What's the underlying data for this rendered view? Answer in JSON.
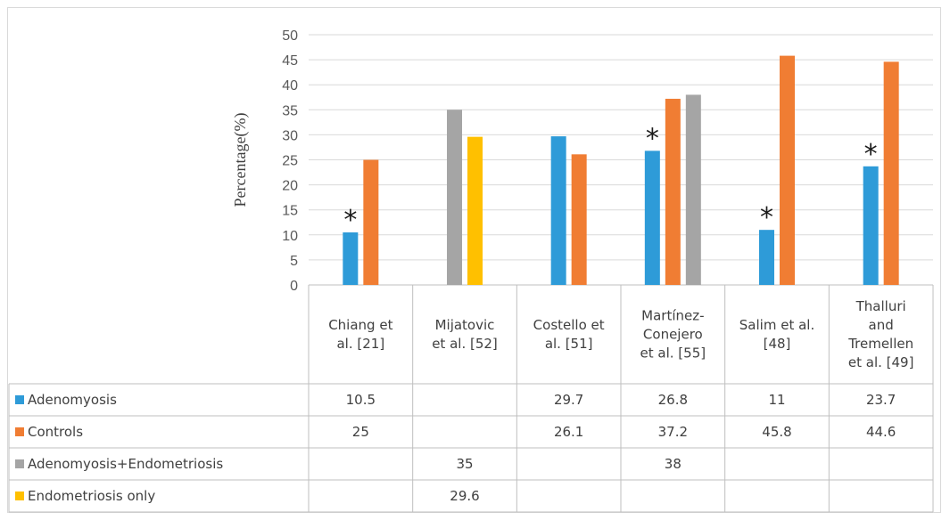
{
  "chart_data": {
    "type": "bar",
    "title": "",
    "xlabel": "",
    "ylabel": "Percentage(%)",
    "ylim": [
      0,
      50
    ],
    "ytick_step": 5,
    "grid": true,
    "legend_placement": "data-table-left",
    "categories": [
      [
        "Chiang et",
        "al. [21]"
      ],
      [
        "Mijatovic",
        "et al. [52]"
      ],
      [
        "Costello et",
        "al. [51]"
      ],
      [
        "Martínez-",
        "Conejero",
        "et al. [55]"
      ],
      [
        "Salim et al.",
        "[48]"
      ],
      [
        "Thalluri",
        "and",
        "Tremellen",
        "et al. [49]"
      ]
    ],
    "series": [
      {
        "name": "Adenomyosis",
        "color": "#2E9BD8",
        "values": [
          10.5,
          null,
          29.7,
          26.8,
          11,
          23.7
        ]
      },
      {
        "name": "Controls",
        "color": "#F07D33",
        "values": [
          25,
          null,
          26.1,
          37.2,
          45.8,
          44.6
        ]
      },
      {
        "name": "Adenomyosis+Endometriosis",
        "color": "#A5A5A5",
        "values": [
          null,
          35,
          null,
          38,
          null,
          null
        ]
      },
      {
        "name": "Endometriosis only",
        "color": "#FFC000",
        "values": [
          null,
          29.6,
          null,
          null,
          null,
          null
        ]
      }
    ],
    "annotations": [
      {
        "text": "*",
        "category_index": 0,
        "series_index": 0
      },
      {
        "text": "*",
        "category_index": 3,
        "series_index": 0
      },
      {
        "text": "*",
        "category_index": 4,
        "series_index": 0
      },
      {
        "text": "*",
        "category_index": 5,
        "series_index": 0
      }
    ]
  }
}
